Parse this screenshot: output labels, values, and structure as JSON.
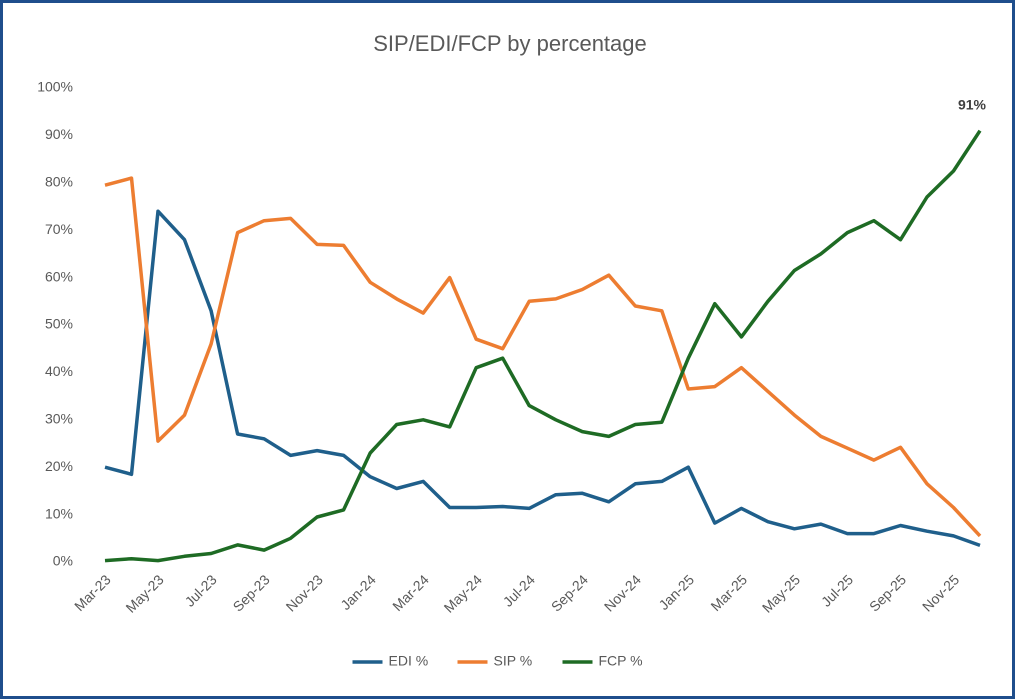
{
  "chart_data": {
    "type": "line",
    "title": "SIP/EDI/FCP by percentage",
    "categories": [
      "Mar-23",
      null,
      "May-23",
      null,
      "Jul-23",
      null,
      "Sep-23",
      null,
      "Nov-23",
      null,
      "Jan-24",
      null,
      "Mar-24",
      null,
      "May-24",
      null,
      "Jul-24",
      null,
      "Sep-24",
      null,
      "Nov-24",
      null,
      "Jan-25",
      null,
      "Mar-25",
      null,
      "May-25",
      null,
      "Jul-25",
      null,
      "Sep-25",
      null,
      "Nov-25",
      null
    ],
    "series": [
      {
        "name": "EDI %",
        "color": "#1f5f8b",
        "values": [
          20,
          18.5,
          74,
          68,
          53,
          27,
          26,
          22.5,
          23.5,
          22.5,
          18,
          15.5,
          17,
          11.5,
          11.5,
          11.7,
          11.3,
          14.2,
          14.5,
          12.7,
          16.5,
          17,
          20,
          8.2,
          11.3,
          8.5,
          7,
          8,
          6,
          6,
          7.7,
          6.5,
          5.5,
          3.5
        ]
      },
      {
        "name": "SIP %",
        "color": "#ed7d31",
        "values": [
          79.5,
          81,
          25.5,
          31,
          46,
          69.5,
          72,
          72.5,
          67,
          66.8,
          59,
          55.5,
          52.5,
          60,
          47,
          45,
          55,
          55.5,
          57.5,
          60.5,
          54,
          53,
          36.5,
          37,
          41,
          36,
          31,
          26.5,
          24,
          21.5,
          24.2,
          16.5,
          11.5,
          5.5
        ]
      },
      {
        "name": "FCP %",
        "color": "#1e6b24",
        "values": [
          0.3,
          0.7,
          0.3,
          1.2,
          1.8,
          3.6,
          2.5,
          5,
          9.5,
          11,
          23,
          29,
          30,
          28.5,
          41,
          43,
          33,
          30,
          27.5,
          26.5,
          29,
          29.5,
          43,
          54.5,
          47.5,
          55,
          61.5,
          65,
          69.5,
          72,
          68,
          77,
          82.5,
          91
        ],
        "value_labels": [
          null,
          null,
          null,
          null,
          null,
          null,
          null,
          null,
          null,
          null,
          null,
          null,
          null,
          null,
          null,
          null,
          null,
          null,
          null,
          null,
          null,
          null,
          null,
          null,
          null,
          null,
          null,
          null,
          null,
          null,
          null,
          null,
          null,
          "91%"
        ]
      }
    ],
    "ylim": [
      0,
      100
    ],
    "yticks": [
      {
        "value": 0,
        "label": "0%"
      },
      {
        "value": 10,
        "label": "10%"
      },
      {
        "value": 20,
        "label": "20%"
      },
      {
        "value": 30,
        "label": "30%"
      },
      {
        "value": 40,
        "label": "40%"
      },
      {
        "value": 50,
        "label": "50%"
      },
      {
        "value": 60,
        "label": "60%"
      },
      {
        "value": 70,
        "label": "70%"
      },
      {
        "value": 80,
        "label": "80%"
      },
      {
        "value": 90,
        "label": "90%"
      },
      {
        "value": 100,
        "label": "100%"
      }
    ],
    "grid": false,
    "legend": "bottom"
  }
}
